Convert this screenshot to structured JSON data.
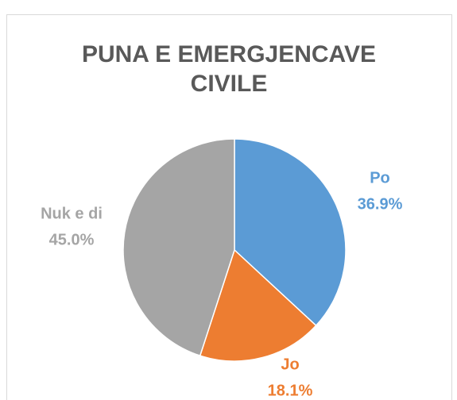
{
  "chart_data": {
    "type": "pie",
    "title": "PUNA E EMERGJENCAVE CIVILE",
    "categories": [
      "Po",
      "Jo",
      "Nuk e di"
    ],
    "values": [
      36.9,
      18.1,
      45.0
    ],
    "value_labels": [
      "36.9%",
      "18.1%",
      "45.0%"
    ],
    "colors": [
      "#5b9bd5",
      "#ed7d31",
      "#a5a5a5"
    ]
  }
}
